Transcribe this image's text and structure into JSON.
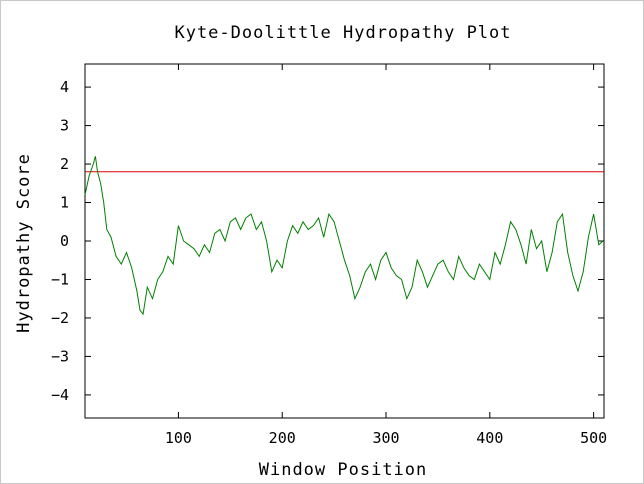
{
  "chart_data": {
    "type": "line",
    "title": "Kyte-Doolittle Hydropathy Plot",
    "xlabel": "Window Position",
    "ylabel": "Hydropathy Score",
    "xlim": [
      10,
      510
    ],
    "ylim": [
      -4.6,
      4.6
    ],
    "x_ticks": [
      100,
      200,
      300,
      400,
      500
    ],
    "y_ticks": [
      4,
      3,
      2,
      1,
      0,
      -1,
      -2,
      -3,
      -4
    ],
    "grid": false,
    "threshold": {
      "y": 1.8,
      "color": "#e00000"
    },
    "series": [
      {
        "color": "#008000",
        "x": [
          10,
          14,
          18,
          20,
          22,
          25,
          28,
          31,
          35,
          40,
          45,
          50,
          55,
          60,
          63,
          66,
          70,
          75,
          80,
          85,
          90,
          95,
          100,
          105,
          110,
          115,
          120,
          125,
          130,
          135,
          140,
          145,
          150,
          155,
          160,
          165,
          170,
          175,
          180,
          185,
          190,
          195,
          200,
          205,
          210,
          215,
          220,
          225,
          230,
          235,
          240,
          245,
          250,
          255,
          260,
          265,
          270,
          275,
          280,
          285,
          290,
          295,
          300,
          305,
          310,
          315,
          320,
          325,
          330,
          335,
          340,
          345,
          350,
          355,
          360,
          365,
          370,
          375,
          380,
          385,
          390,
          395,
          400,
          405,
          410,
          415,
          420,
          425,
          430,
          435,
          440,
          445,
          450,
          455,
          460,
          465,
          470,
          475,
          480,
          485,
          490,
          495,
          500,
          505,
          509
        ],
        "y": [
          1.2,
          1.7,
          2.0,
          2.2,
          1.8,
          1.5,
          1.0,
          0.3,
          0.1,
          -0.4,
          -0.6,
          -0.3,
          -0.7,
          -1.3,
          -1.8,
          -1.9,
          -1.2,
          -1.5,
          -1.0,
          -0.8,
          -0.4,
          -0.6,
          0.4,
          0.0,
          -0.1,
          -0.2,
          -0.4,
          -0.1,
          -0.3,
          0.2,
          0.3,
          0.0,
          0.5,
          0.6,
          0.3,
          0.6,
          0.7,
          0.3,
          0.5,
          0.0,
          -0.8,
          -0.5,
          -0.7,
          0.0,
          0.4,
          0.2,
          0.5,
          0.3,
          0.4,
          0.6,
          0.1,
          0.7,
          0.5,
          0.0,
          -0.5,
          -0.9,
          -1.5,
          -1.2,
          -0.8,
          -0.6,
          -1.0,
          -0.5,
          -0.3,
          -0.7,
          -0.9,
          -1.0,
          -1.5,
          -1.2,
          -0.5,
          -0.8,
          -1.2,
          -0.9,
          -0.6,
          -0.5,
          -0.8,
          -1.0,
          -0.4,
          -0.7,
          -0.9,
          -1.0,
          -0.6,
          -0.8,
          -1.0,
          -0.3,
          -0.6,
          -0.1,
          0.5,
          0.3,
          -0.1,
          -0.6,
          0.3,
          -0.2,
          0.0,
          -0.8,
          -0.3,
          0.5,
          0.7,
          -0.3,
          -0.9,
          -1.3,
          -0.8,
          0.1,
          0.7,
          -0.1,
          0.0
        ]
      }
    ]
  }
}
